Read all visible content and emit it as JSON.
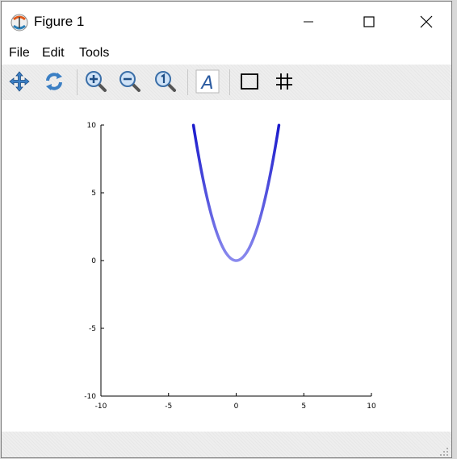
{
  "window": {
    "title": "Figure 1",
    "app_icon": "octave-icon",
    "controls": [
      "minimize-icon",
      "maximize-icon",
      "close-icon"
    ]
  },
  "menu": {
    "items": [
      {
        "label": "File"
      },
      {
        "label": "Edit"
      },
      {
        "label": "Tools"
      }
    ]
  },
  "toolbar": {
    "tools": [
      "pan-icon",
      "rotate-icon",
      "zoom-in-icon",
      "zoom-out-icon",
      "reset-zoom-icon",
      "text-icon",
      "box-icon",
      "grid-icon"
    ]
  },
  "chart_data": {
    "type": "line",
    "function": "y = x^2",
    "x": [
      -3.16,
      -2.5,
      -2,
      -1.5,
      -1,
      -0.5,
      0,
      0.5,
      1,
      1.5,
      2,
      2.5,
      3.16
    ],
    "y": [
      10,
      6.25,
      4,
      2.25,
      1,
      0.25,
      0,
      0.25,
      1,
      2.25,
      4,
      6.25,
      10
    ],
    "xlim": [
      -10,
      10
    ],
    "ylim": [
      -10,
      10
    ],
    "xticks": [
      "-10",
      "-5",
      "0",
      "5",
      "10"
    ],
    "yticks": [
      "10",
      "5",
      "0",
      "-5",
      "-10"
    ],
    "line_color_top": "#1a1acc",
    "line_color_bottom": "#8a8aee",
    "grid": false,
    "legend": false
  }
}
